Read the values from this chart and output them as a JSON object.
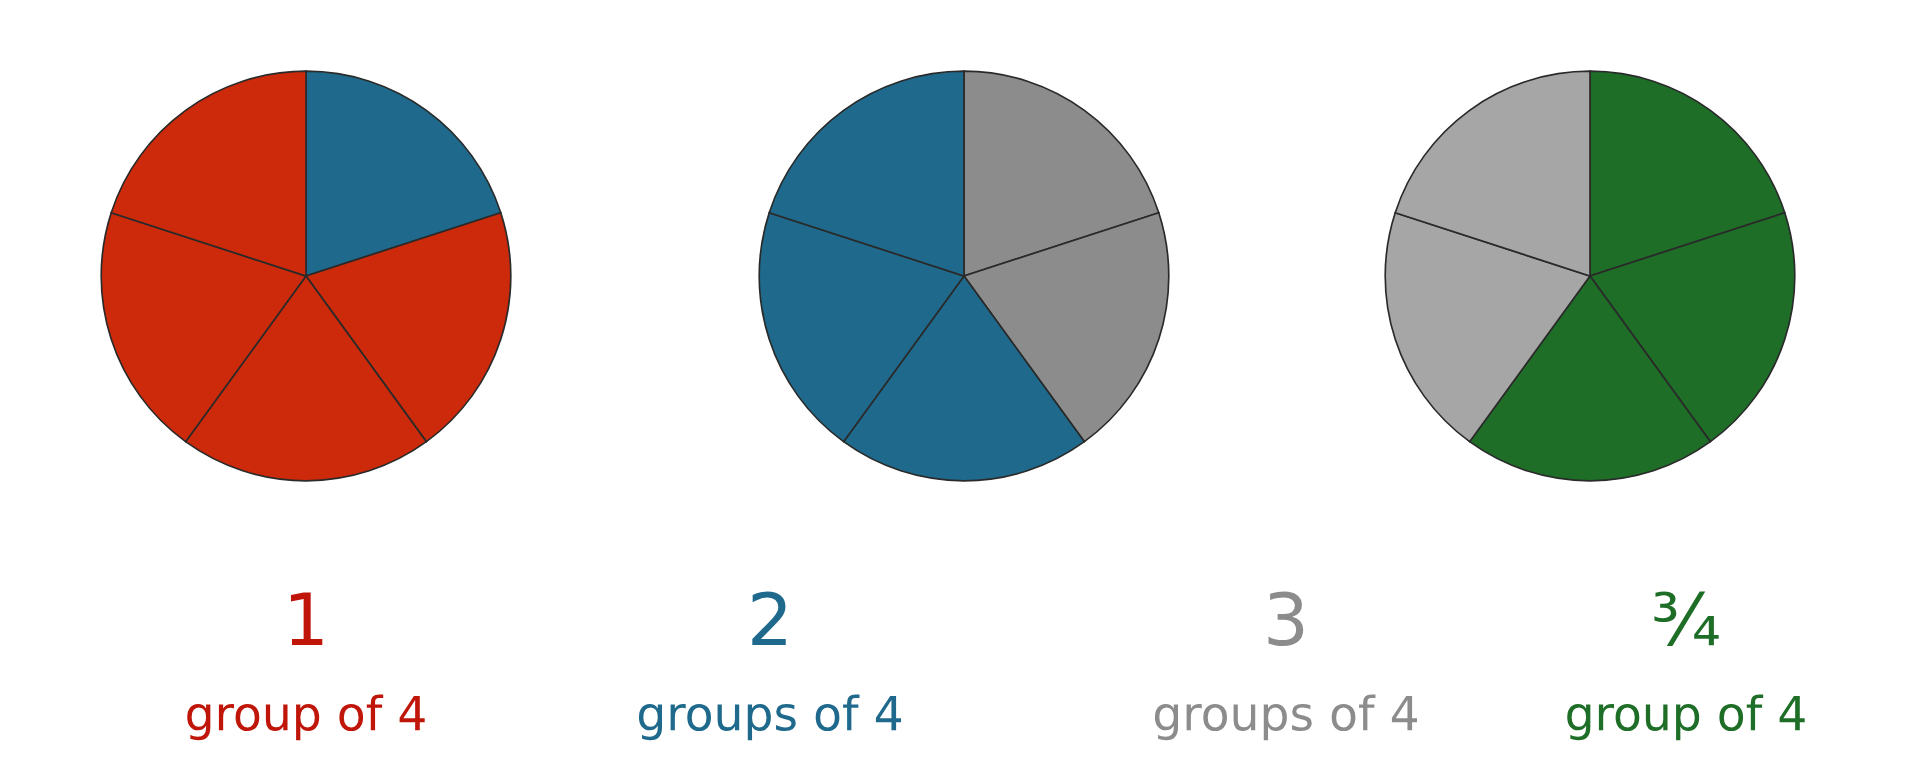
{
  "chart_data": [
    {
      "type": "pie",
      "categories": [
        null,
        null,
        null,
        null,
        null
      ],
      "values": [
        20,
        20,
        20,
        20,
        20
      ],
      "colors": [
        "#1f6a8c",
        "#cc2a0a",
        "#cc2a0a",
        "#cc2a0a",
        "#cc2a0a"
      ]
    },
    {
      "type": "pie",
      "categories": [
        null,
        null,
        null,
        null,
        null
      ],
      "values": [
        20,
        20,
        20,
        20,
        20
      ],
      "colors": [
        "#8c8c8c",
        "#8c8c8c",
        "#1f6a8c",
        "#1f6a8c",
        "#1f6a8c"
      ]
    },
    {
      "type": "pie",
      "categories": [
        null,
        null,
        null,
        null,
        null
      ],
      "values": [
        20,
        20,
        20,
        20,
        20
      ],
      "colors": [
        "#1e6e28",
        "#1e6e28",
        "#1e6e28",
        "#a6a6a6",
        "#a6a6a6"
      ]
    },
    {
      "type": "other",
      "annotations": [
        "1\ngroup of 4",
        "2\ngroups of 4",
        "3\ngroups of 4",
        "¾\ngroup of 4"
      ],
      "colors": [
        "#c0160a",
        "#1f6a8c",
        "#8c8c8c",
        "#1e6e28"
      ]
    }
  ]
}
